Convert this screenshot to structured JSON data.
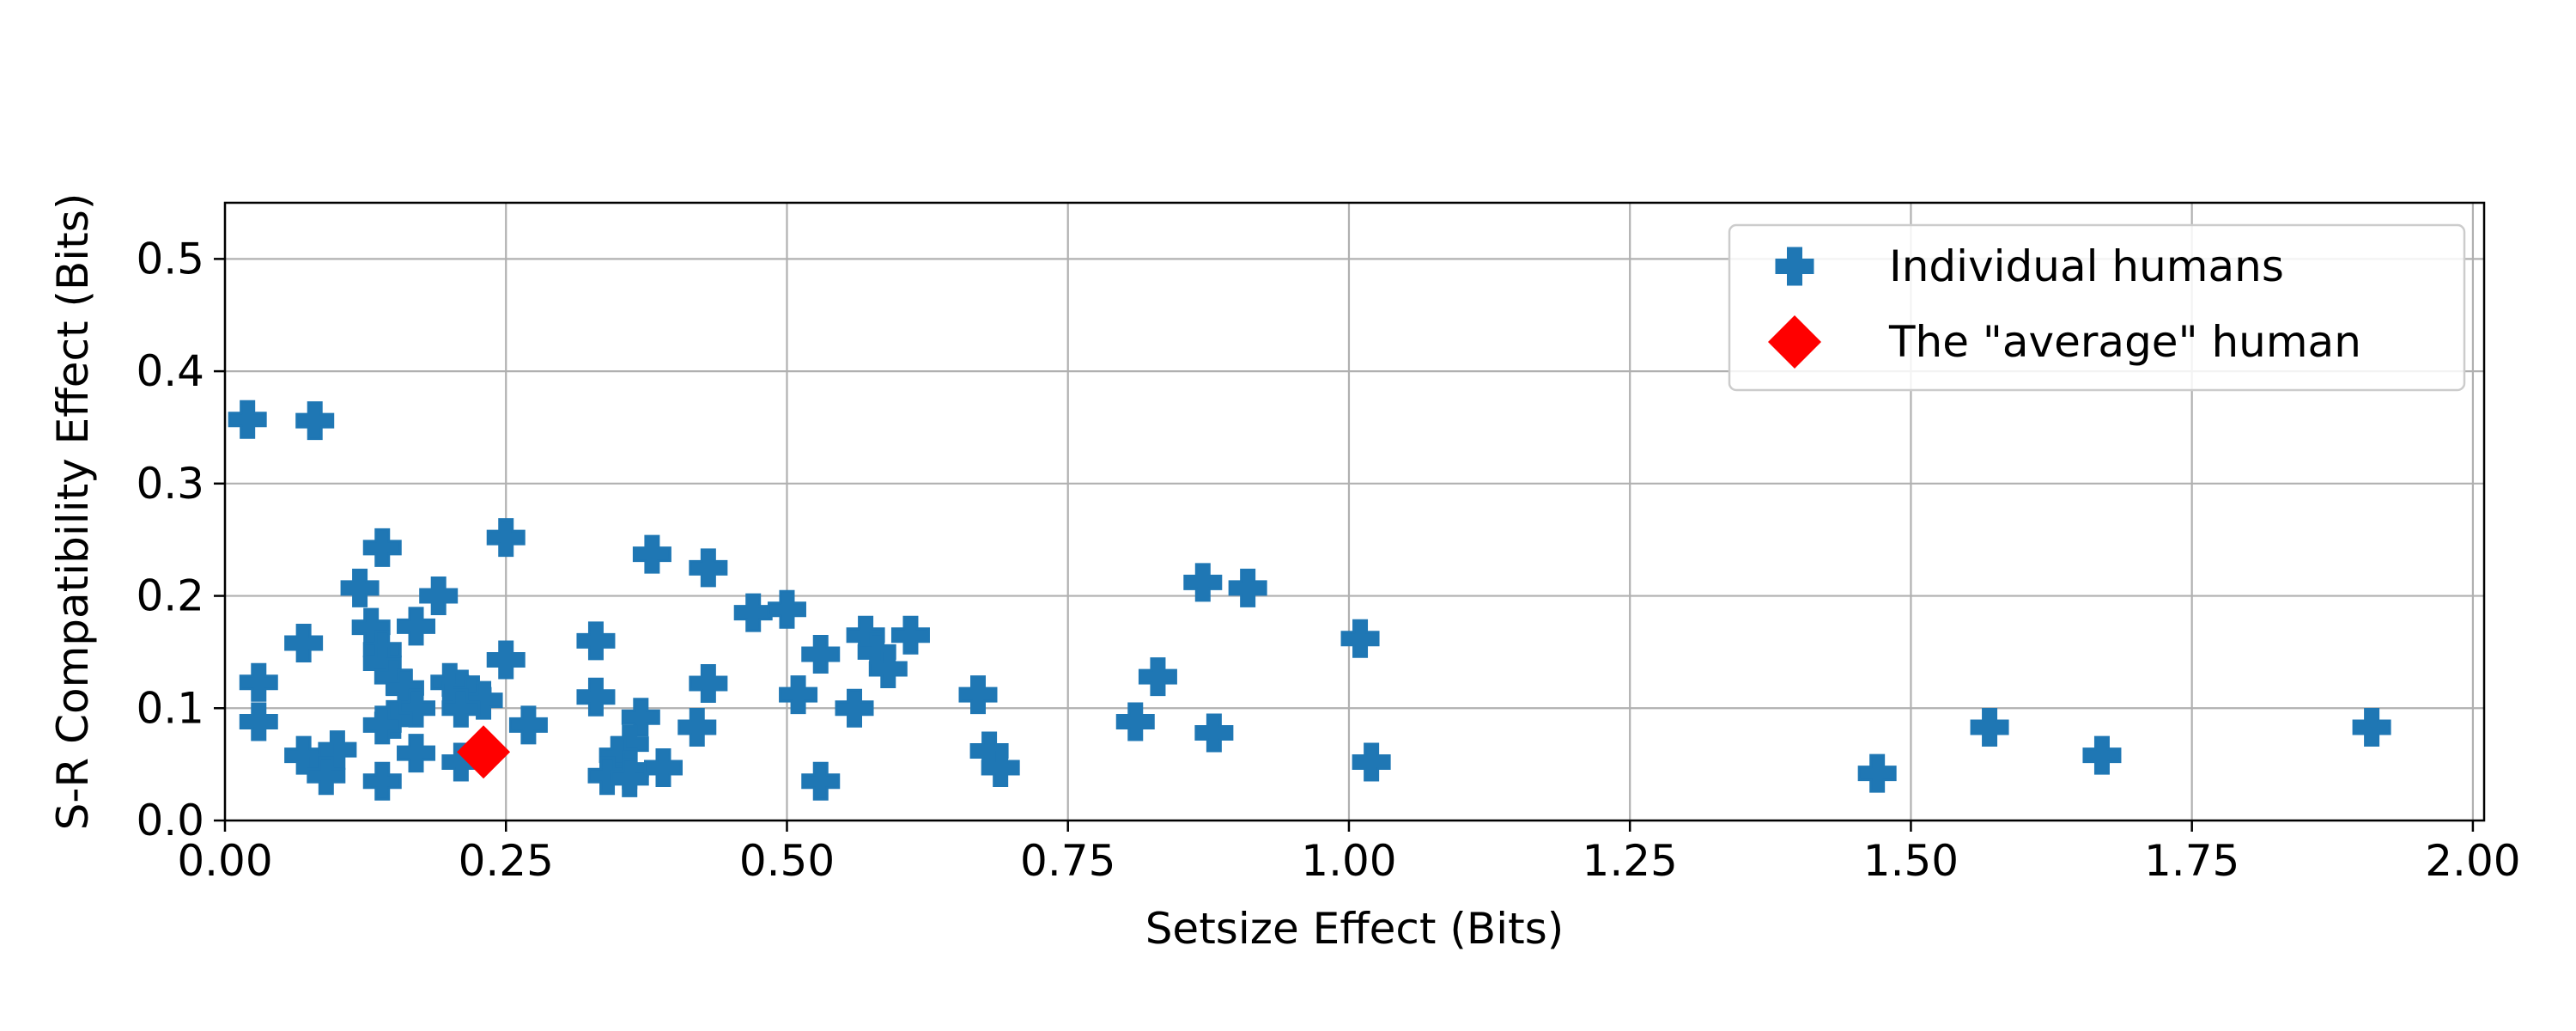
{
  "chart_data": {
    "type": "scatter",
    "title": "",
    "xlabel": "Setsize Effect (Bits)",
    "ylabel": "S-R Compatibility Effect (Bits)",
    "xlim": [
      0,
      2.01
    ],
    "ylim": [
      0,
      0.55
    ],
    "x_ticks": [
      0,
      0.25,
      0.5,
      0.75,
      1.0,
      1.25,
      1.5,
      1.75,
      2.0
    ],
    "x_tick_labels": [
      "0.00",
      "0.25",
      "0.50",
      "0.75",
      "1.00",
      "1.25",
      "1.50",
      "1.75",
      "2.00"
    ],
    "y_ticks": [
      0,
      0.1,
      0.2,
      0.3,
      0.4,
      0.5
    ],
    "y_tick_labels": [
      "0.0",
      "0.1",
      "0.2",
      "0.3",
      "0.4",
      "0.5"
    ],
    "grid": true,
    "legend_position": "top-right",
    "series": [
      {
        "name": "Individual humans",
        "marker": "plus-filled",
        "color": "#1f77b4",
        "points": [
          [
            0.02,
            0.357
          ],
          [
            0.08,
            0.356
          ],
          [
            0.14,
            0.243
          ],
          [
            0.25,
            0.252
          ],
          [
            0.38,
            0.237
          ],
          [
            0.43,
            0.225
          ],
          [
            0.12,
            0.207
          ],
          [
            0.19,
            0.2
          ],
          [
            0.17,
            0.173
          ],
          [
            0.13,
            0.172
          ],
          [
            0.07,
            0.158
          ],
          [
            0.14,
            0.152
          ],
          [
            0.14,
            0.14
          ],
          [
            0.15,
            0.128
          ],
          [
            0.03,
            0.123
          ],
          [
            0.16,
            0.118
          ],
          [
            0.2,
            0.123
          ],
          [
            0.21,
            0.117
          ],
          [
            0.22,
            0.112
          ],
          [
            0.23,
            0.107
          ],
          [
            0.21,
            0.1
          ],
          [
            0.17,
            0.1
          ],
          [
            0.25,
            0.143
          ],
          [
            0.15,
            0.09
          ],
          [
            0.03,
            0.088
          ],
          [
            0.27,
            0.085
          ],
          [
            0.14,
            0.085
          ],
          [
            0.1,
            0.063
          ],
          [
            0.07,
            0.058
          ],
          [
            0.09,
            0.052
          ],
          [
            0.17,
            0.06
          ],
          [
            0.09,
            0.04
          ],
          [
            0.14,
            0.035
          ],
          [
            0.21,
            0.052
          ],
          [
            0.33,
            0.16
          ],
          [
            0.33,
            0.11
          ],
          [
            0.37,
            0.092
          ],
          [
            0.36,
            0.068
          ],
          [
            0.35,
            0.058
          ],
          [
            0.36,
            0.045
          ],
          [
            0.34,
            0.04
          ],
          [
            0.36,
            0.038
          ],
          [
            0.39,
            0.047
          ],
          [
            0.42,
            0.083
          ],
          [
            0.43,
            0.122
          ],
          [
            0.47,
            0.185
          ],
          [
            0.5,
            0.188
          ],
          [
            0.51,
            0.112
          ],
          [
            0.53,
            0.035
          ],
          [
            0.53,
            0.148
          ],
          [
            0.56,
            0.1
          ],
          [
            0.57,
            0.165
          ],
          [
            0.58,
            0.15
          ],
          [
            0.59,
            0.135
          ],
          [
            0.61,
            0.165
          ],
          [
            0.67,
            0.112
          ],
          [
            0.68,
            0.062
          ],
          [
            0.69,
            0.047
          ],
          [
            0.81,
            0.088
          ],
          [
            0.83,
            0.128
          ],
          [
            0.87,
            0.212
          ],
          [
            0.88,
            0.078
          ],
          [
            0.91,
            0.207
          ],
          [
            1.01,
            0.162
          ],
          [
            1.02,
            0.052
          ],
          [
            1.47,
            0.042
          ],
          [
            1.57,
            0.083
          ],
          [
            1.67,
            0.058
          ],
          [
            1.91,
            0.083
          ]
        ]
      },
      {
        "name": "The \"average\" human",
        "marker": "diamond",
        "color": "#ff0000",
        "points": [
          [
            0.23,
            0.061
          ]
        ]
      }
    ]
  }
}
